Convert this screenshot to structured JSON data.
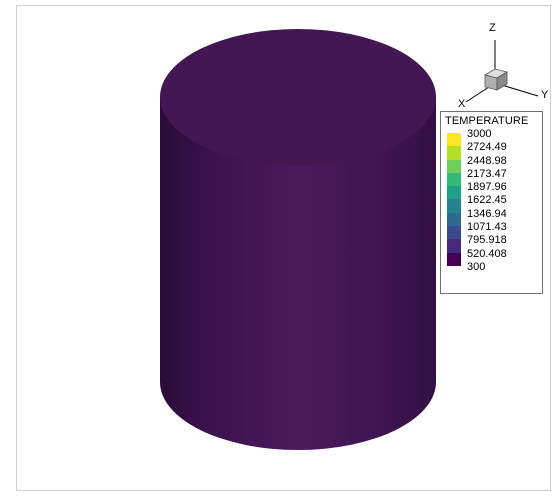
{
  "legend": {
    "title": "TEMPERATURE",
    "levels": [
      "3000",
      "2724.49",
      "2448.98",
      "2173.47",
      "1897.96",
      "1622.45",
      "1346.94",
      "1071.43",
      "795.918",
      "520.408",
      "300"
    ],
    "colors": [
      "#fde725",
      "#b5de2b",
      "#6ece58",
      "#35b779",
      "#1f9e89",
      "#26828e",
      "#31688e",
      "#3e4989",
      "#482878",
      "#440154"
    ]
  },
  "axes": {
    "x_label": "X",
    "y_label": "Y",
    "z_label": "Z"
  },
  "colors": {
    "cylinder_top": "#431654",
    "cylinder_side_dark": "#2a0c37",
    "cylinder_side_light": "#4a1a5c"
  }
}
